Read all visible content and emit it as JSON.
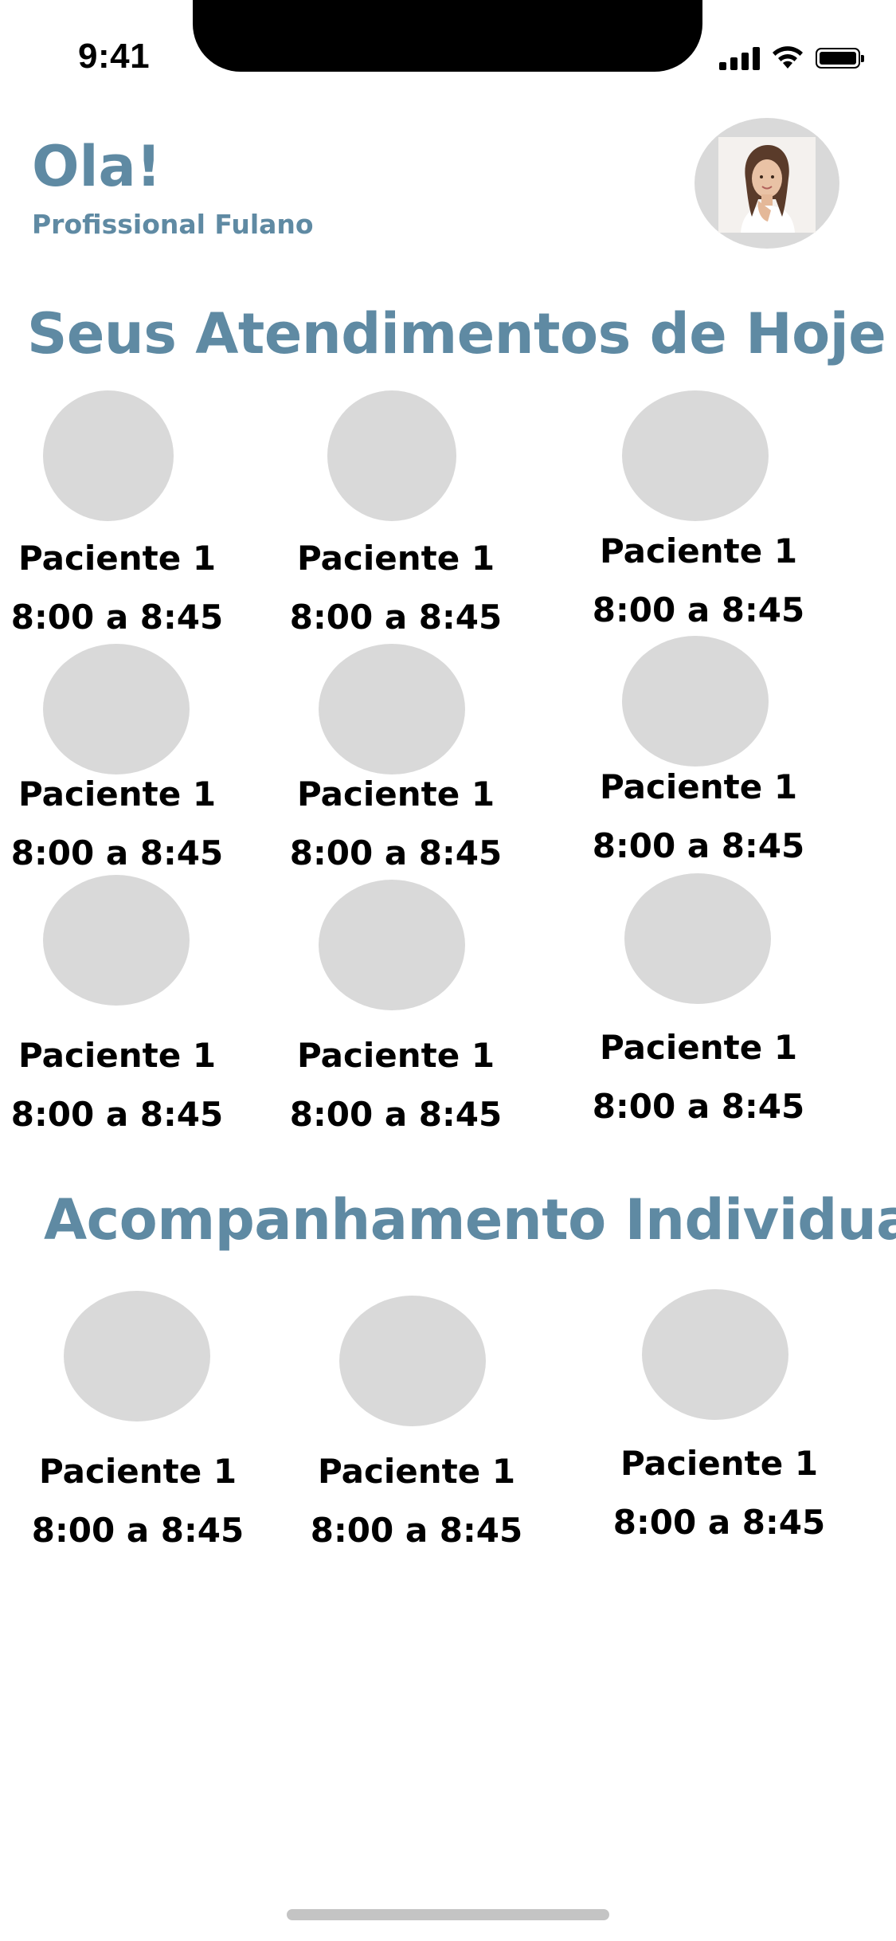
{
  "status_bar": {
    "time": "9:41"
  },
  "header": {
    "greeting": "Ola!",
    "professional_name": "Profissional Fulano"
  },
  "today_section": {
    "title": "Seus Atendimentos de Hoje",
    "patients": [
      {
        "name": "Paciente 1",
        "time": "8:00 a 8:45"
      },
      {
        "name": "Paciente 1",
        "time": "8:00 a 8:45"
      },
      {
        "name": "Paciente 1",
        "time": "8:00 a 8:45"
      },
      {
        "name": "Paciente 1",
        "time": "8:00 a 8:45"
      },
      {
        "name": "Paciente 1",
        "time": "8:00 a 8:45"
      },
      {
        "name": "Paciente 1",
        "time": "8:00 a 8:45"
      },
      {
        "name": "Paciente 1",
        "time": "8:00 a 8:45"
      },
      {
        "name": "Paciente 1",
        "time": "8:00 a 8:45"
      },
      {
        "name": "Paciente 1",
        "time": "8:00 a 8:45"
      }
    ]
  },
  "individual_section": {
    "title": "Acompanhamento Individual",
    "patients": [
      {
        "name": "Paciente 1",
        "time": "8:00 a 8:45"
      },
      {
        "name": "Paciente 1",
        "time": "8:00 a 8:45"
      },
      {
        "name": "Paciente 1",
        "time": "8:00 a 8:45"
      }
    ]
  },
  "colors": {
    "accent": "#5f8aa3",
    "placeholder": "#d9d9d9",
    "text": "#000000"
  }
}
